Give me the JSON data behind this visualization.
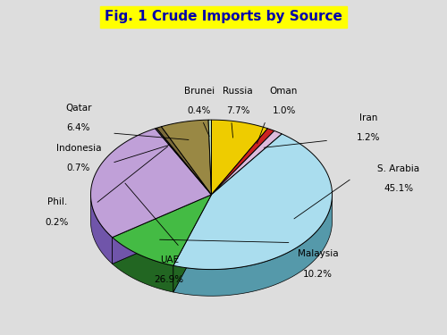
{
  "title": "Fig. 1 Crude Imports by Source",
  "title_bg": "#FFFF00",
  "title_color": "#0000AA",
  "background_color": "#DDDDDD",
  "slices": [
    {
      "label": "S. Arabia",
      "pct": 45.1,
      "color": "#AADDEE",
      "dark": "#5599AA"
    },
    {
      "label": "UAE",
      "pct": 26.9,
      "color": "#C0A0D8",
      "dark": "#7055AA"
    },
    {
      "label": "Malaysia",
      "pct": 10.2,
      "color": "#44BB44",
      "dark": "#226622"
    },
    {
      "label": "Russia",
      "pct": 7.7,
      "color": "#EECC00",
      "dark": "#997700"
    },
    {
      "label": "Qatar",
      "pct": 6.4,
      "color": "#998844",
      "dark": "#554422"
    },
    {
      "label": "Iran",
      "pct": 1.2,
      "color": "#DDBBDD",
      "dark": "#AA77AA"
    },
    {
      "label": "Oman",
      "pct": 1.0,
      "color": "#CC2222",
      "dark": "#881111"
    },
    {
      "label": "Indonesia",
      "pct": 0.7,
      "color": "#7A6A3A",
      "dark": "#443322"
    },
    {
      "label": "Brunei",
      "pct": 0.4,
      "color": "#BBDDBB",
      "dark": "#669966"
    },
    {
      "label": "Phil.",
      "pct": 0.2,
      "color": "#888888",
      "dark": "#444444"
    }
  ],
  "fig_width": 5.0,
  "fig_height": 3.75
}
